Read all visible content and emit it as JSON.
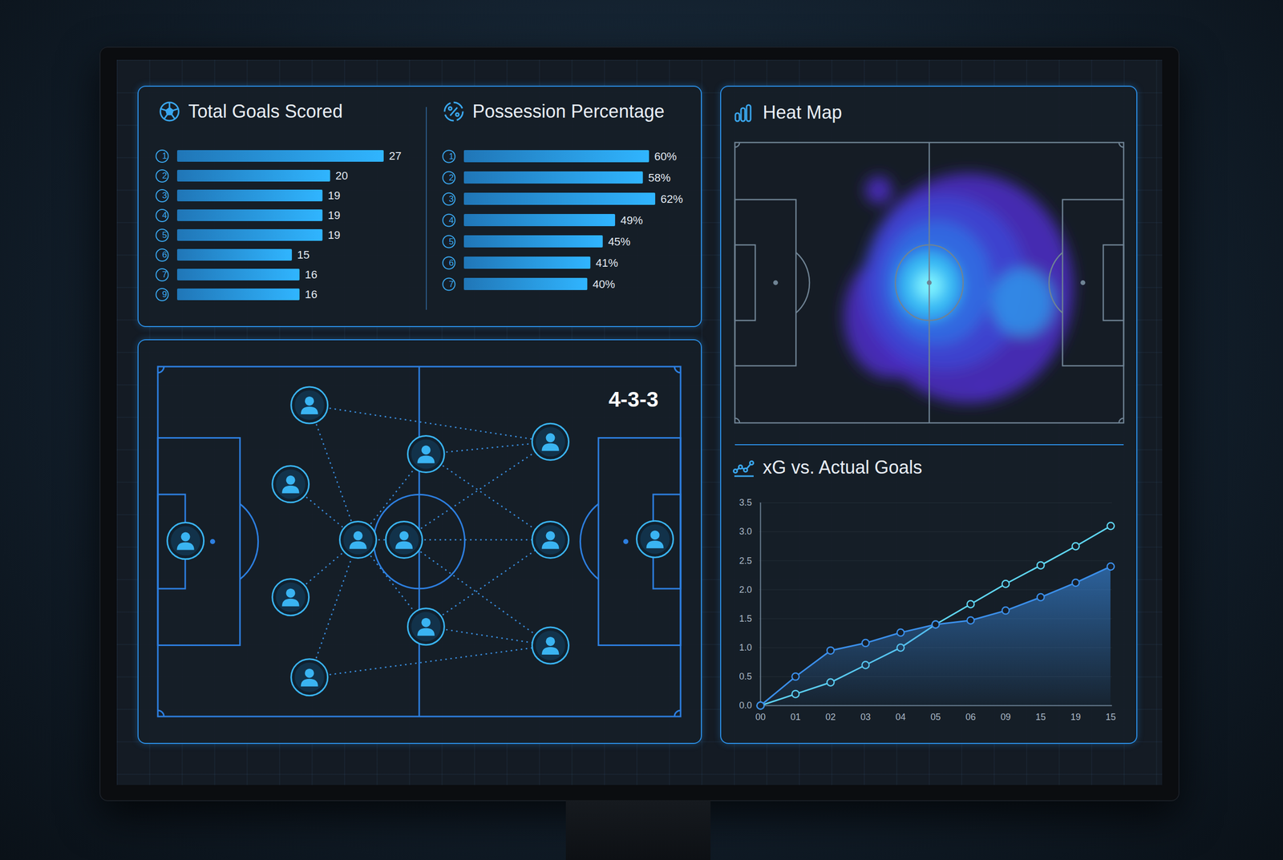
{
  "chart_data": [
    {
      "type": "bar",
      "orientation": "horizontal",
      "title": "Total Goals Scored",
      "categories": [
        "1",
        "2",
        "3",
        "4",
        "5",
        "6",
        "7",
        "9"
      ],
      "values": [
        27,
        20,
        19,
        19,
        19,
        15,
        16,
        16
      ],
      "color": "#2a9df4",
      "data_labels": true,
      "tick_labels": "y"
    },
    {
      "type": "bar",
      "orientation": "horizontal",
      "title": "Possession Percentage",
      "categories": [
        "1",
        "2",
        "3",
        "4",
        "5",
        "6",
        "7"
      ],
      "values": [
        60,
        58,
        62,
        49,
        45,
        41,
        40
      ],
      "value_labels": [
        "60%",
        "58%",
        "62%",
        "49%",
        "45%",
        "41%",
        "40%"
      ],
      "color": "#2a9df4",
      "data_labels": true,
      "tick_labels": "y"
    },
    {
      "type": "line",
      "title": "xG vs. Actual Goals",
      "categories": [
        "00",
        "01",
        "02",
        "03",
        "04",
        "05",
        "06",
        "09",
        "15",
        "19",
        "15"
      ],
      "series": [
        {
          "color": "#5fd6f2",
          "values": [
            0,
            0.2,
            0.4,
            0.7,
            1.0,
            1.4,
            1.75,
            2.1,
            2.42,
            2.75,
            3.1
          ]
        },
        {
          "color": "#3b8fea",
          "type": "area",
          "values": [
            0,
            0.5,
            0.95,
            1.08,
            1.26,
            1.4,
            1.47,
            1.64,
            1.87,
            2.12,
            2.4
          ]
        }
      ],
      "ylim": [
        0,
        3.5
      ],
      "yticks": [
        {
          "value": 0,
          "label": "0.0"
        },
        0.5,
        {
          "value": 1,
          "label": "1.0"
        },
        1.5,
        {
          "value": 2,
          "label": "2.0"
        },
        2.5,
        {
          "value": 3,
          "label": "3.0"
        },
        3.5
      ],
      "grid": true,
      "marker": "circle"
    }
  ],
  "formation": {
    "label": "4-3-3"
  },
  "heat_map": {
    "title": "Heat Map"
  }
}
